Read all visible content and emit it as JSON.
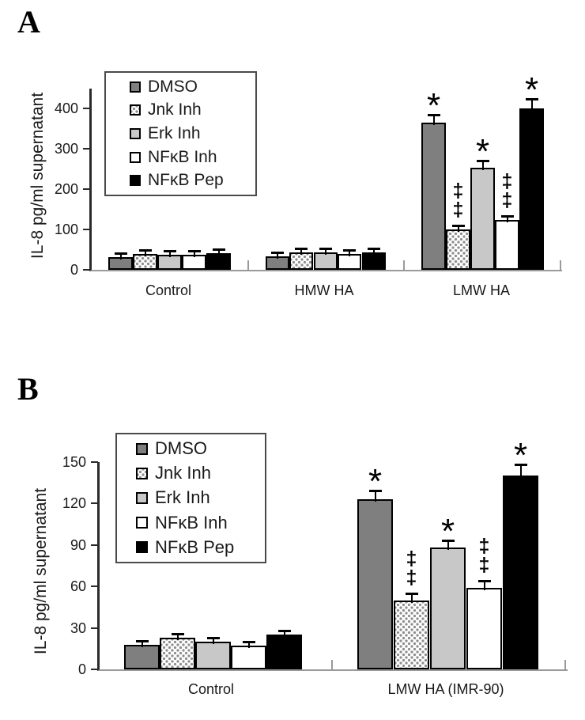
{
  "figure": {
    "panels": [
      {
        "label": "A"
      },
      {
        "label": "B"
      }
    ]
  },
  "chart_data": [
    {
      "panel": "A",
      "type": "bar",
      "title": "",
      "xlabel": "",
      "ylabel": "IL-8 pg/ml supernatant",
      "ylim": [
        0,
        450
      ],
      "yticks": [
        0,
        100,
        200,
        300,
        400
      ],
      "grid": false,
      "legend_position": "upper-left",
      "categories": [
        "Control",
        "HMW HA",
        "LMW HA"
      ],
      "fills": [
        "#7f7f7f",
        "dots-pattern",
        "#c8c8c8",
        "#ffffff",
        "#000000"
      ],
      "series": [
        {
          "name": "DMSO",
          "values": [
            32,
            33,
            365
          ],
          "errors": [
            3,
            3,
            15
          ],
          "annotations": [
            "",
            "",
            "*"
          ]
        },
        {
          "name": "Jnk Inh",
          "values": [
            40,
            43,
            100
          ],
          "errors": [
            4,
            4,
            5
          ],
          "annotations": [
            "",
            "",
            "‡‡"
          ]
        },
        {
          "name": "Erk Inh",
          "values": [
            38,
            43,
            253
          ],
          "errors": [
            3,
            4,
            14
          ],
          "annotations": [
            "",
            "",
            "*"
          ]
        },
        {
          "name": "NFκB Inh",
          "values": [
            38,
            40,
            124
          ],
          "errors": [
            3,
            3,
            6
          ],
          "annotations": [
            "",
            "",
            "‡‡"
          ]
        },
        {
          "name": "NFκB Pep",
          "values": [
            42,
            43,
            400
          ],
          "errors": [
            3,
            3,
            20
          ],
          "annotations": [
            "",
            "",
            "*"
          ]
        }
      ]
    },
    {
      "panel": "B",
      "type": "bar",
      "title": "",
      "xlabel": "",
      "ylabel": "IL-8 pg/ml supernatant",
      "ylim": [
        0,
        150
      ],
      "yticks": [
        0,
        30,
        60,
        90,
        120,
        150
      ],
      "grid": false,
      "legend_position": "upper-left",
      "categories": [
        "Control",
        "LMW HA (IMR-90)"
      ],
      "fills": [
        "#7f7f7f",
        "dots-pattern",
        "#c8c8c8",
        "#ffffff",
        "#000000"
      ],
      "series": [
        {
          "name": "DMSO",
          "values": [
            18,
            123
          ],
          "errors": [
            1,
            5
          ],
          "annotations": [
            "",
            "*"
          ]
        },
        {
          "name": "Jnk Inh",
          "values": [
            23,
            50
          ],
          "errors": [
            1.5,
            4
          ],
          "annotations": [
            "",
            "‡‡"
          ]
        },
        {
          "name": "Erk Inh",
          "values": [
            20,
            88
          ],
          "errors": [
            1.5,
            4
          ],
          "annotations": [
            "",
            "*"
          ]
        },
        {
          "name": "NFκB Inh",
          "values": [
            17,
            59
          ],
          "errors": [
            1.5,
            4
          ],
          "annotations": [
            "",
            "‡‡"
          ]
        },
        {
          "name": "NFκB Pep",
          "values": [
            25,
            140
          ],
          "errors": [
            1,
            7
          ],
          "annotations": [
            "",
            "*"
          ]
        }
      ]
    }
  ]
}
